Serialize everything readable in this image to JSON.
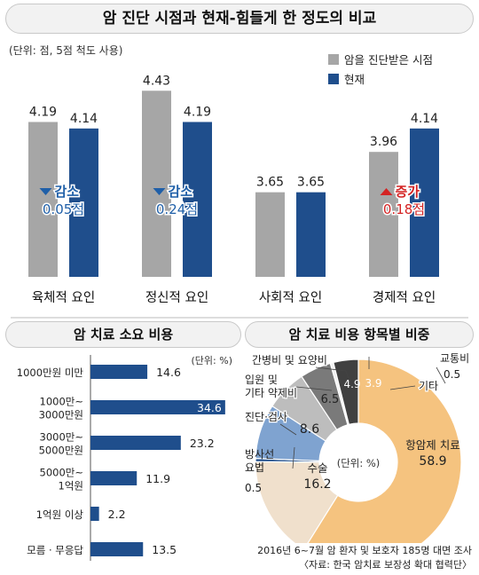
{
  "titles": {
    "top": "암 진단 시점과 현재-힘들게 한 정도의 비교",
    "cost": "암 치료 소요 비용",
    "items": "암 치료 비용 항목별 비중"
  },
  "top_unit": "(단위: 점, 5점 척도 사용)",
  "cost_unit": "(단위: %)",
  "pie_unit": "(단위: %)",
  "footer": {
    "survey": "2016년 6~7월 암 환자 및 보호자 185명 대면 조사",
    "source": "〈자료: 한국 암치료 보장성 확대 협력단〉"
  },
  "colors": {
    "diagnosis": "#a6a6a6",
    "current": "#1f4e8c",
    "decrease": "#1f5fa8",
    "increase": "#d42323",
    "cost_bar": "#1f4e8c"
  },
  "chart_data": [
    {
      "type": "bar",
      "title": "암 진단 시점과 현재-힘들게 한 정도의 비교",
      "categories": [
        "육체적 요인",
        "정신적 요인",
        "사회적 요인",
        "경제적 요인"
      ],
      "series": [
        {
          "name": "암을 진단받은 시점",
          "values": [
            4.19,
            4.43,
            3.65,
            3.96
          ]
        },
        {
          "name": "현재",
          "values": [
            4.14,
            4.19,
            3.65,
            4.14
          ]
        }
      ],
      "value_labels": {
        "diagnosis": [
          "4.19",
          "4.43",
          "3.65",
          "3.96"
        ],
        "current": [
          "4.14",
          "4.19",
          "3.65",
          "4.14"
        ]
      },
      "ylim": [
        3,
        4.5
      ],
      "legend": "top-right",
      "annotations": [
        {
          "category": 0,
          "direction": "down",
          "label": "감소",
          "value": "0.05점"
        },
        {
          "category": 1,
          "direction": "down",
          "label": "감소",
          "value": "0.24점"
        },
        {
          "category": 3,
          "direction": "up",
          "label": "증가",
          "value": "0.18점"
        }
      ]
    },
    {
      "type": "bar",
      "orientation": "horizontal",
      "title": "암 치료 소요 비용",
      "categories": [
        [
          "1000만원 미만"
        ],
        [
          "1000만~",
          "3000만원"
        ],
        [
          "3000만~",
          "5000만원"
        ],
        [
          "5000만~",
          "1억원"
        ],
        [
          "1억원 이상"
        ],
        [
          "모름 · 무응답"
        ]
      ],
      "values": [
        14.6,
        34.6,
        23.2,
        11.9,
        2.2,
        13.5
      ],
      "value_labels": [
        "14.6",
        "34.6",
        "23.2",
        "11.9",
        "2.2",
        "13.5"
      ],
      "xlim": [
        0,
        36
      ]
    },
    {
      "type": "pie",
      "title": "암 치료 비용 항목별 비중",
      "slices": [
        {
          "name": "항암제 치료",
          "value": 58.9,
          "label": "58.9",
          "color": "#f5c37f"
        },
        {
          "name": "수술",
          "value": 16.2,
          "label": "16.2",
          "color": "#f0e0cc"
        },
        {
          "name": "방사선 요법",
          "value": 0.5,
          "label": "0.5",
          "color": "#1f4e8c"
        },
        {
          "name": "진단·검사",
          "value": 8.6,
          "label": "8.6",
          "color": "#7fa3d0"
        },
        {
          "name": "입원 및 기타 약제비",
          "value": 6.5,
          "label": "6.5",
          "color": "#bdbdbd"
        },
        {
          "name": "간병비 및 요양비",
          "value": 4.9,
          "label": "4.9",
          "color": "#7a7a7a"
        },
        {
          "name": "교통비",
          "value": 0.5,
          "label": "0.5",
          "color": "#f0f0f0"
        },
        {
          "name": "기타",
          "value": 3.9,
          "label": "3.9",
          "color": "#404040"
        }
      ]
    }
  ]
}
